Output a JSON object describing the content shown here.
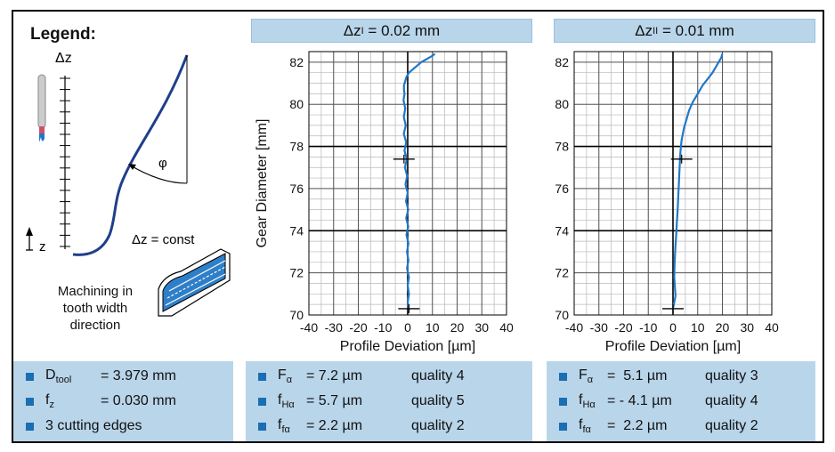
{
  "legend": {
    "title": "Legend:",
    "delta_z_label": "Δz",
    "z_label": "z",
    "phi_label": "φ",
    "const_label": "Δz = const",
    "machining_text": [
      "Machining in",
      "tooth width",
      "direction"
    ]
  },
  "panels": [
    {
      "header": {
        "main": "Δz",
        "sub": "I",
        "rest": " = 0.02 mm"
      },
      "rows": [
        {
          "sym": "F",
          "sub": "α",
          "value": "= 7.2 µm",
          "quality": "quality 4"
        },
        {
          "sym": "f",
          "sub": "Hα",
          "value": "= 5.7 µm",
          "quality": "quality 5"
        },
        {
          "sym": "f",
          "sub": "fα",
          "value": "= 2.2 µm",
          "quality": "quality 2"
        }
      ]
    },
    {
      "header": {
        "main": "Δz",
        "sub": "II",
        "rest": " = 0.01 mm"
      },
      "rows": [
        {
          "sym": "F",
          "sub": "α",
          "value": "=  5.1 µm",
          "quality": "quality 3"
        },
        {
          "sym": "f",
          "sub": "Hα",
          "value": "= - 4.1 µm",
          "quality": "quality 4"
        },
        {
          "sym": "f",
          "sub": "fα",
          "value": "=  2.2 µm",
          "quality": "quality 2"
        }
      ]
    }
  ],
  "tool_info": [
    {
      "sym": "D",
      "sub": "tool",
      "value": "= 3.979 mm"
    },
    {
      "sym": "f",
      "sub": "z",
      "value": "= 0.030 mm"
    },
    {
      "sym": "",
      "sub": "",
      "value": "3 cutting edges"
    }
  ],
  "chart_data": [
    {
      "type": "line",
      "title": "Δz_I = 0.02 mm",
      "xlabel": "Profile Deviation [µm]",
      "ylabel": "Gear Diameter [mm]",
      "xlim": [
        -40,
        40
      ],
      "ylim": [
        70,
        82.5
      ],
      "xticks": [
        -40,
        -30,
        -20,
        -10,
        0,
        10,
        20,
        30,
        40
      ],
      "yticks": [
        70,
        72,
        74,
        76,
        78,
        80,
        82
      ],
      "grid": true,
      "color": "#1f78c8",
      "markers": [
        {
          "x": -1.5,
          "y": 77.4
        },
        {
          "x": 0.5,
          "y": 70.3
        }
      ],
      "x": [
        0.5,
        0,
        0.5,
        0,
        0.5,
        -0.3,
        0.3,
        -0.3,
        0.3,
        -0.5,
        0.2,
        -0.6,
        0.2,
        -0.7,
        0,
        -0.9,
        -0.2,
        -1.1,
        -0.4,
        -1.3,
        -0.6,
        -1.6,
        -0.8,
        -1.6,
        -1,
        -1.7,
        -1.3,
        -1.5,
        -1.5,
        -1,
        -0.5,
        0.5,
        1.5,
        2.5,
        3.5,
        4.5,
        5.5,
        7,
        8.5,
        10,
        11
      ],
      "y": [
        70.2,
        70.6,
        71,
        71.4,
        71.8,
        72.2,
        72.6,
        73,
        73.4,
        73.8,
        74.2,
        74.6,
        75,
        75.4,
        75.8,
        76.2,
        76.6,
        77,
        77.4,
        77.8,
        78.2,
        78.6,
        79,
        79.4,
        79.8,
        80.2,
        80.5,
        80.7,
        80.9,
        81.1,
        81.3,
        81.5,
        81.6,
        81.7,
        81.8,
        81.9,
        82,
        82.1,
        82.2,
        82.3,
        82.4
      ]
    },
    {
      "type": "line",
      "title": "Δz_II = 0.01 mm",
      "xlabel": "Profile Deviation [µm]",
      "ylabel": "Gear Diameter [mm]",
      "xlim": [
        -40,
        40
      ],
      "ylim": [
        70,
        82.5
      ],
      "xticks": [
        -40,
        -30,
        -20,
        -10,
        0,
        10,
        20,
        30,
        40
      ],
      "yticks": [
        70,
        72,
        74,
        76,
        78,
        80,
        82
      ],
      "grid": true,
      "color": "#1f78c8",
      "markers": [
        {
          "x": 3.5,
          "y": 77.4
        },
        {
          "x": 0,
          "y": 70.3
        }
      ],
      "x": [
        0,
        0.5,
        1,
        0.8,
        0.5,
        0.6,
        0.8,
        1,
        1.3,
        1.5,
        1.8,
        2,
        2.2,
        2.4,
        2.6,
        2.8,
        3,
        3.2,
        3.5,
        4,
        4.5,
        5.5,
        6.5,
        8,
        10,
        12,
        14,
        16,
        17.5,
        18.5,
        19.5,
        20
      ],
      "y": [
        70.3,
        70.6,
        70.9,
        71.3,
        71.8,
        72.3,
        72.8,
        73.3,
        73.8,
        74.3,
        74.8,
        75.3,
        75.8,
        76.3,
        76.8,
        77.3,
        77.7,
        78,
        78.3,
        78.6,
        78.9,
        79.3,
        79.7,
        80.1,
        80.5,
        80.9,
        81.2,
        81.5,
        81.8,
        82,
        82.2,
        82.4
      ]
    }
  ]
}
